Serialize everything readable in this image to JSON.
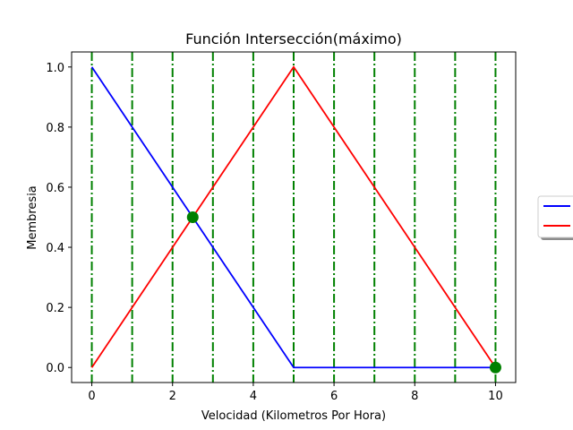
{
  "chart_data": {
    "type": "line",
    "title": "Función Intersección(máximo)",
    "xlabel": "Velocidad (Kilometros Por Hora)",
    "ylabel": "Membresia",
    "xlim": [
      -0.5,
      10.5
    ],
    "ylim": [
      -0.05,
      1.05
    ],
    "xticks": [
      0,
      2,
      4,
      6,
      8,
      10
    ],
    "yticks": [
      0.0,
      0.2,
      0.4,
      0.6,
      0.8,
      1.0
    ],
    "xtick_labels": [
      "0",
      "2",
      "4",
      "6",
      "8",
      "10"
    ],
    "ytick_labels": [
      "0.0",
      "0.2",
      "0.4",
      "0.6",
      "0.8",
      "1.0"
    ],
    "grid": false,
    "legend_placement": "right, outside plot",
    "series": [
      {
        "color": "#0000ff",
        "x": [
          0,
          5,
          10
        ],
        "y": [
          1.0,
          0.0,
          0.0
        ]
      },
      {
        "color": "#ff0000",
        "x": [
          0,
          5,
          10
        ],
        "y": [
          0.0,
          1.0,
          0.0
        ]
      }
    ],
    "vertical_lines": {
      "color": "#008000",
      "style": "dash-dot",
      "x": [
        0,
        1,
        2,
        3,
        4,
        5,
        6,
        7,
        8,
        9,
        10
      ]
    },
    "markers": {
      "color": "#008000",
      "points": [
        {
          "x": 2.5,
          "y": 0.5
        },
        {
          "x": 10,
          "y": 0.0
        }
      ]
    }
  }
}
